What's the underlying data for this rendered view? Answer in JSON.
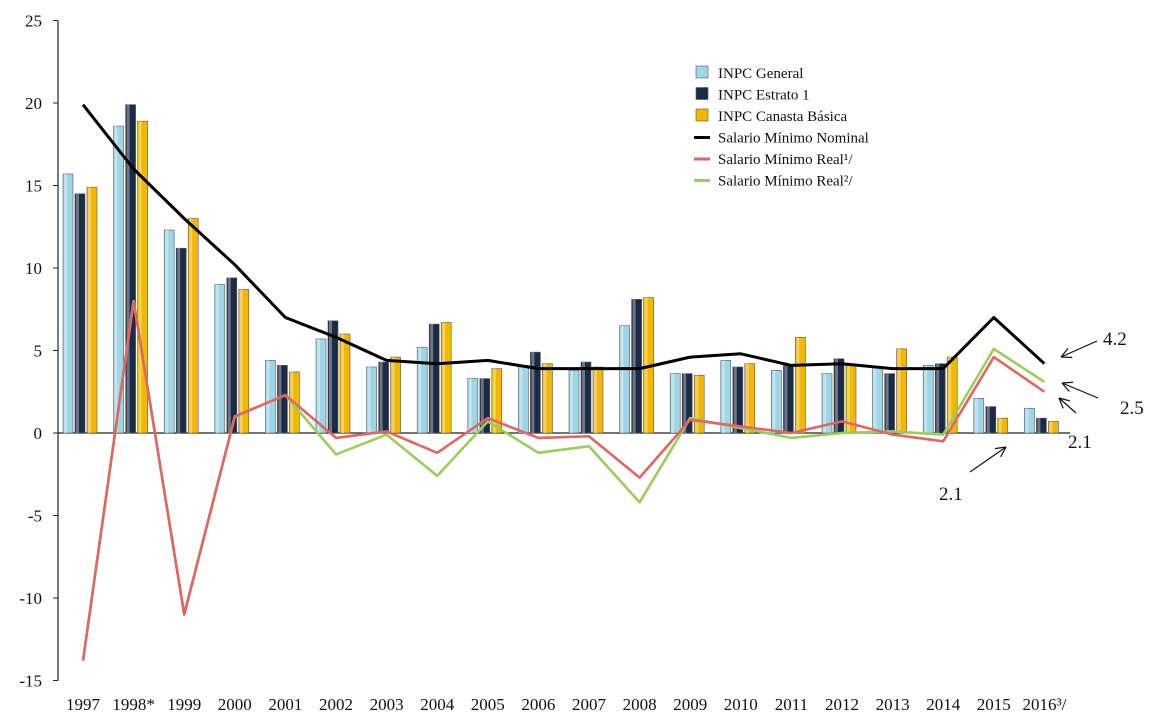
{
  "chart_data": {
    "type": "bar",
    "title": "",
    "xlabel": "",
    "ylabel": "",
    "ylim": [
      -15,
      25
    ],
    "yticks": [
      25,
      20,
      15,
      10,
      5,
      0,
      -5,
      -10,
      -15
    ],
    "categories": [
      "1997",
      "1998*",
      "1999",
      "2000",
      "2001",
      "2002",
      "2003",
      "2004",
      "2005",
      "2006",
      "2007",
      "2008",
      "2009",
      "2010",
      "2011",
      "2012",
      "2013",
      "2014",
      "2015",
      "2016³/"
    ],
    "bar_series": [
      {
        "name": "INPC General",
        "color": "#9fd6e6",
        "values": [
          15.7,
          18.6,
          12.3,
          9.0,
          4.4,
          5.7,
          4.0,
          5.2,
          3.3,
          4.1,
          3.8,
          6.5,
          3.6,
          4.4,
          3.8,
          3.6,
          4.0,
          4.1,
          2.1,
          1.5
        ]
      },
      {
        "name": "INPC Estrato 1",
        "color": "#1c2b45",
        "values": [
          14.5,
          19.9,
          11.2,
          9.4,
          4.1,
          6.8,
          4.3,
          6.6,
          3.3,
          4.9,
          4.3,
          8.1,
          3.6,
          4.0,
          4.1,
          4.5,
          3.6,
          4.2,
          1.6,
          0.9
        ]
      },
      {
        "name": "INPC Canasta Básica",
        "color": "#f2b705",
        "values": [
          14.9,
          18.9,
          13.0,
          8.7,
          3.7,
          6.0,
          4.6,
          6.7,
          3.9,
          4.2,
          4.0,
          8.2,
          3.5,
          4.2,
          5.8,
          4.1,
          5.1,
          4.6,
          0.9,
          0.7
        ]
      }
    ],
    "line_series": [
      {
        "name": "Salario Mínimo  Nominal",
        "color": "#000000",
        "values": [
          19.9,
          16.0,
          13.0,
          10.2,
          7.0,
          5.8,
          4.4,
          4.2,
          4.4,
          3.9,
          3.9,
          3.9,
          4.6,
          4.8,
          4.1,
          4.2,
          3.9,
          3.9,
          7.0,
          4.2
        ]
      },
      {
        "name": "Salario Mínimo  Real¹/",
        "color": "#e06666",
        "values": [
          -13.8,
          8.0,
          -11.0,
          1.0,
          2.3,
          -0.3,
          0.1,
          -1.2,
          0.9,
          -0.3,
          -0.2,
          -2.7,
          0.8,
          0.4,
          0.0,
          0.7,
          -0.1,
          -0.5,
          4.6,
          2.5
        ]
      },
      {
        "name": "Salario Mínimo  Real²/",
        "color": "#9acd5c",
        "values": [
          -13.8,
          8.0,
          -11.0,
          1.0,
          2.3,
          -1.3,
          -0.1,
          -2.6,
          0.7,
          -1.2,
          -0.8,
          -4.2,
          0.9,
          0.3,
          -0.3,
          0.0,
          0.1,
          -0.1,
          5.1,
          3.1
        ]
      }
    ],
    "legend_position": "top-right",
    "grid": false,
    "annotations": [
      "4.2",
      "2.5",
      "2.1",
      "2.1"
    ]
  }
}
